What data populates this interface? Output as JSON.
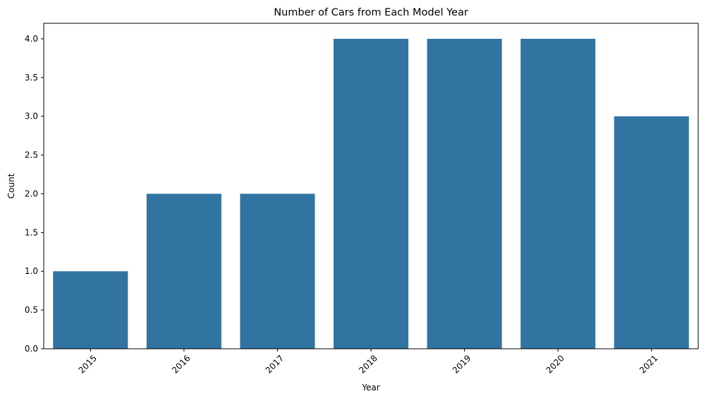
{
  "chart_data": {
    "type": "bar",
    "title": "Number of Cars from Each Model Year",
    "xlabel": "Year",
    "ylabel": "Count",
    "categories": [
      "2015",
      "2016",
      "2017",
      "2018",
      "2019",
      "2020",
      "2021"
    ],
    "values": [
      1,
      2,
      2,
      4,
      4,
      4,
      3
    ],
    "ylim": [
      0,
      4.2
    ],
    "yticks": [
      "0.0",
      "0.5",
      "1.0",
      "1.5",
      "2.0",
      "2.5",
      "3.0",
      "3.5",
      "4.0"
    ],
    "xtick_rotation_deg": 45,
    "grid": false,
    "legend": "none",
    "bar_color": "#3274a1"
  }
}
